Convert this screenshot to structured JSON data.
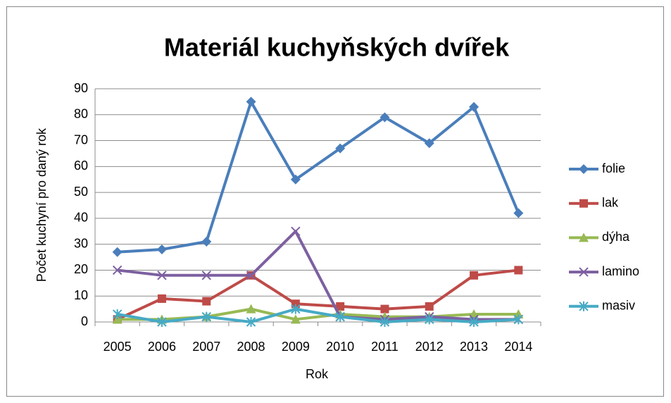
{
  "chart_data": {
    "type": "line",
    "title": "Materiál kuchyňských dvířek",
    "x_label": "Rok",
    "y_label": "Počet kuchyní pro daný rok",
    "categories": [
      "2005",
      "2006",
      "2007",
      "2008",
      "2009",
      "2010",
      "2011",
      "2012",
      "2013",
      "2014"
    ],
    "series": [
      {
        "name": "folie",
        "color": "#4a7ebb",
        "marker": "diamond",
        "values": [
          27,
          28,
          31,
          85,
          55,
          67,
          79,
          69,
          83,
          42
        ]
      },
      {
        "name": "lak",
        "color": "#be4b48",
        "marker": "square",
        "values": [
          1,
          9,
          8,
          18,
          7,
          6,
          5,
          6,
          18,
          20
        ]
      },
      {
        "name": "dýha",
        "color": "#98b954",
        "marker": "triangle",
        "values": [
          1,
          1,
          2,
          5,
          1,
          3,
          2,
          2,
          3,
          3
        ]
      },
      {
        "name": "lamino",
        "color": "#7d60a0",
        "marker": "x",
        "values": [
          20,
          18,
          18,
          18,
          35,
          2,
          1,
          2,
          1,
          1
        ]
      },
      {
        "name": "masiv",
        "color": "#46aac5",
        "marker": "star",
        "values": [
          3,
          0,
          2,
          0,
          5,
          2,
          0,
          1,
          0,
          1
        ]
      }
    ],
    "ylim": [
      0,
      90
    ],
    "yticks": [
      0,
      10,
      20,
      30,
      40,
      50,
      60,
      70,
      80,
      90
    ],
    "grid": true,
    "legend": "right"
  }
}
